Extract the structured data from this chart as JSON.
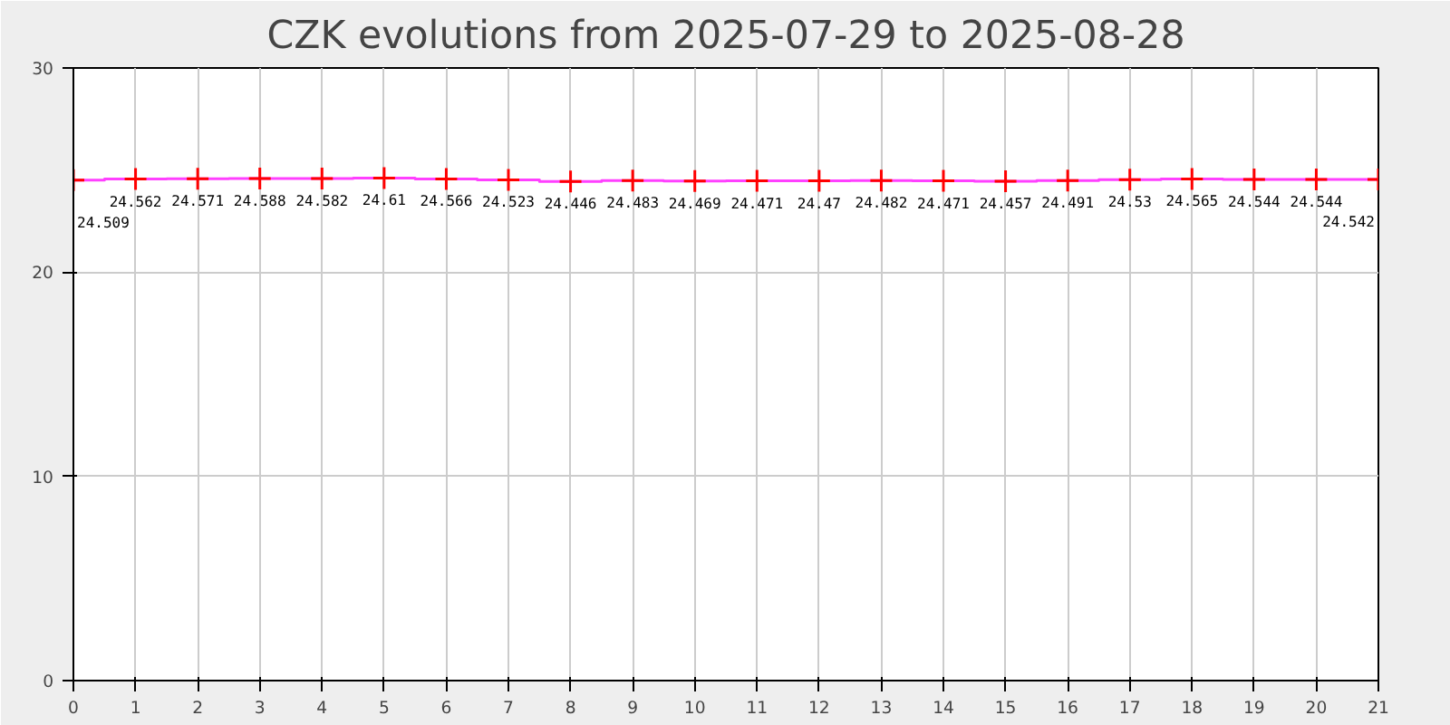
{
  "chart_data": {
    "type": "step",
    "title": "CZK evolutions from 2025-07-29 to 2025-08-28",
    "x": [
      0,
      1,
      2,
      3,
      4,
      5,
      6,
      7,
      8,
      9,
      10,
      11,
      12,
      13,
      14,
      15,
      16,
      17,
      18,
      19,
      20,
      21
    ],
    "series": [
      {
        "color": "#ff40ff",
        "colors": [
          "#ff0000",
          "#ff0000",
          "#ff0000",
          "#ff0000",
          "#ff0000",
          "#ff0000",
          "#ff0000",
          "#ff0000",
          "#ff0000",
          "#ff0000",
          "#ff0000",
          "#ff0000",
          "#ff0000",
          "#ff0000",
          "#ff0000",
          "#ff0000",
          "#ff0000",
          "#ff0000",
          "#ff0000",
          "#ff0000",
          "#ff0000",
          "#ff0000"
        ],
        "values": [
          24.509,
          24.562,
          24.571,
          24.588,
          24.582,
          24.61,
          24.566,
          24.523,
          24.446,
          24.483,
          24.469,
          24.471,
          24.47,
          24.482,
          24.471,
          24.457,
          24.491,
          24.53,
          24.565,
          24.544,
          24.544,
          24.542
        ]
      }
    ],
    "marker": "cross",
    "data_labels": true,
    "xlim": [
      0,
      21
    ],
    "xticks": [
      0,
      1,
      2,
      3,
      4,
      5,
      6,
      7,
      8,
      9,
      10,
      11,
      12,
      13,
      14,
      15,
      16,
      17,
      18,
      19,
      20,
      21
    ],
    "ylim": [
      0,
      30
    ],
    "yticks": [
      0,
      10,
      20,
      30
    ],
    "grid": true
  }
}
